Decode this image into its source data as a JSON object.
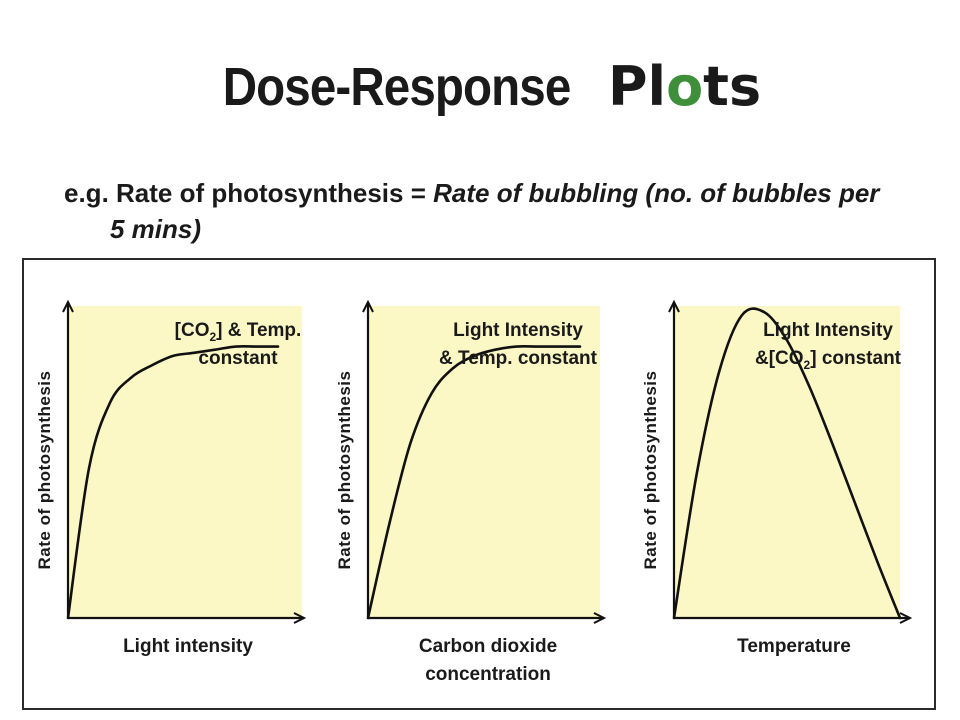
{
  "slide": {
    "title_main": "Dose-Response",
    "title_plots_letters": [
      "P",
      "l",
      "o",
      "t",
      "s"
    ],
    "title_plots_colors": [
      "#1a1a1a",
      "#1a1a1a",
      "#3e8e3a",
      "#1a1a1a",
      "#1a1a1a"
    ],
    "subtitle_prefix": "e.g. Rate of photosynthesis = ",
    "subtitle_em_line1": "Rate of bubbling (no. of bubbles per",
    "subtitle_em_line2": "5 mins)"
  },
  "colors": {
    "plot_background": "#fbf8c6",
    "curve": "#111111",
    "axis": "#111111",
    "label": "#1a1a1a"
  },
  "chart_data": [
    {
      "type": "line",
      "ylabel": "Rate of photosynthesis",
      "xlabel_lines": [
        "Light intensity"
      ],
      "annotation_lines": [
        {
          "before": "[CO",
          "sub": "2",
          "after": "] & Temp."
        },
        {
          "before": "constant",
          "sub": "",
          "after": ""
        }
      ],
      "xlim": [
        0,
        1
      ],
      "ylim": [
        0,
        1
      ],
      "x": [
        0,
        0.1,
        0.2,
        0.3,
        0.4,
        0.5,
        0.6,
        0.7,
        0.8,
        0.9,
        1.0
      ],
      "y": [
        0,
        0.48,
        0.69,
        0.77,
        0.81,
        0.84,
        0.85,
        0.86,
        0.87,
        0.87,
        0.87
      ]
    },
    {
      "type": "line",
      "ylabel": "Rate of photosynthesis",
      "xlabel_lines": [
        "Carbon dioxide",
        "concentration"
      ],
      "annotation_lines": [
        {
          "before": "Light Intensity",
          "sub": "",
          "after": ""
        },
        {
          "before": "& Temp. constant",
          "sub": "",
          "after": ""
        }
      ],
      "xlim": [
        0,
        1
      ],
      "ylim": [
        0,
        1
      ],
      "x": [
        0,
        0.1,
        0.2,
        0.3,
        0.4,
        0.5,
        0.6,
        0.7,
        0.8,
        0.9,
        1.0
      ],
      "y": [
        0,
        0.3,
        0.56,
        0.72,
        0.8,
        0.84,
        0.86,
        0.87,
        0.87,
        0.87,
        0.87
      ]
    },
    {
      "type": "line",
      "ylabel": "Rate of photosynthesis",
      "xlabel_lines": [
        "Temperature"
      ],
      "annotation_lines": [
        {
          "before": "Light Intensity",
          "sub": "",
          "after": ""
        },
        {
          "before": "&[CO",
          "sub": "2",
          "after": "] constant"
        }
      ],
      "xlim": [
        0,
        1
      ],
      "ylim": [
        0,
        1
      ],
      "x": [
        0,
        0.1,
        0.2,
        0.3,
        0.4,
        0.5,
        0.6,
        0.7,
        0.8,
        0.9,
        1.0
      ],
      "y": [
        0,
        0.46,
        0.79,
        0.97,
        0.98,
        0.89,
        0.74,
        0.56,
        0.37,
        0.18,
        0
      ]
    }
  ]
}
